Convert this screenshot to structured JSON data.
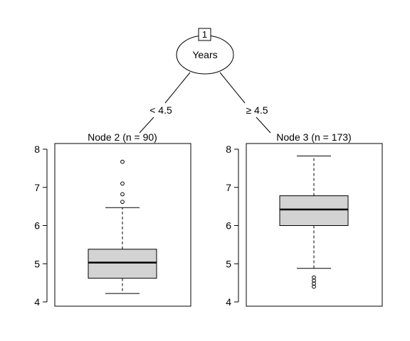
{
  "tree": {
    "root": {
      "id": "1",
      "variable": "Years"
    },
    "edges": [
      {
        "label": "< 4.5"
      },
      {
        "label": "≥ 4.5"
      }
    ]
  },
  "chart_data": [
    {
      "type": "box",
      "title": "Node 2 (n = 90)",
      "ylim": [
        4,
        8
      ],
      "ticks": [
        "4",
        "5",
        "6",
        "7",
        "8"
      ],
      "box": {
        "whisker_low": 4.22,
        "q1": 4.62,
        "median": 5.03,
        "q3": 5.38,
        "whisker_high": 6.47
      },
      "outliers_high": [
        6.62,
        6.82,
        7.1,
        7.67
      ],
      "outliers_low": []
    },
    {
      "type": "box",
      "title": "Node 3 (n = 173)",
      "ylim": [
        4,
        8
      ],
      "ticks": [
        "4",
        "5",
        "6",
        "7",
        "8"
      ],
      "box": {
        "whisker_low": 4.88,
        "q1": 6.0,
        "median": 6.42,
        "q3": 6.78,
        "whisker_high": 7.82
      },
      "outliers_high": [],
      "outliers_low": [
        4.4,
        4.48,
        4.56,
        4.64
      ]
    }
  ],
  "colors": {
    "box_fill": "#d3d3d3",
    "line": "#000000",
    "background": "#ffffff"
  }
}
